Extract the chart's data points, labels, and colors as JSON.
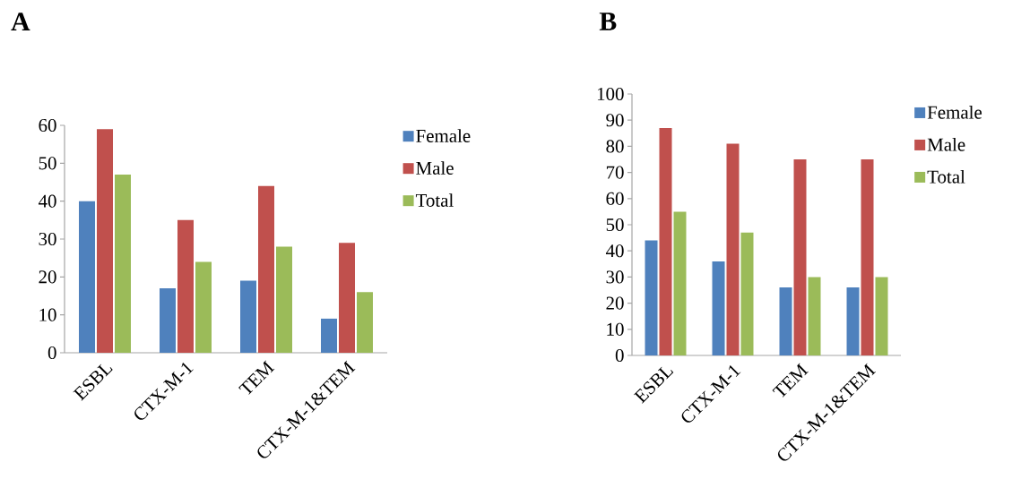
{
  "chart_data": [
    {
      "type": "bar",
      "title": "A",
      "categories": [
        "ESBL",
        "CTX-M-1",
        "TEM",
        "CTX-M-1&TEM"
      ],
      "series": [
        {
          "name": "Female",
          "color": "#4f81bd",
          "values": [
            40,
            17,
            19,
            9
          ]
        },
        {
          "name": "Male",
          "color": "#c0504d",
          "values": [
            59,
            35,
            44,
            29
          ]
        },
        {
          "name": "Total",
          "color": "#9bbb59",
          "values": [
            47,
            24,
            28,
            16
          ]
        }
      ],
      "ylim": [
        0,
        60
      ],
      "yticks": [
        0,
        10,
        20,
        30,
        40,
        50,
        60
      ],
      "legend": "right",
      "grid": false
    },
    {
      "type": "bar",
      "title": "B",
      "categories": [
        "ESBL",
        "CTX-M-1",
        "TEM",
        "CTX-M-1&TEM"
      ],
      "series": [
        {
          "name": "Female",
          "color": "#4f81bd",
          "values": [
            44,
            36,
            26,
            26
          ]
        },
        {
          "name": "Male",
          "color": "#c0504d",
          "values": [
            87,
            81,
            75,
            75
          ]
        },
        {
          "name": "Total",
          "color": "#9bbb59",
          "values": [
            55,
            47,
            30,
            30
          ]
        }
      ],
      "ylim": [
        0,
        100
      ],
      "yticks": [
        0,
        10,
        20,
        30,
        40,
        50,
        60,
        70,
        80,
        90,
        100
      ],
      "legend": "right",
      "grid": false
    }
  ]
}
